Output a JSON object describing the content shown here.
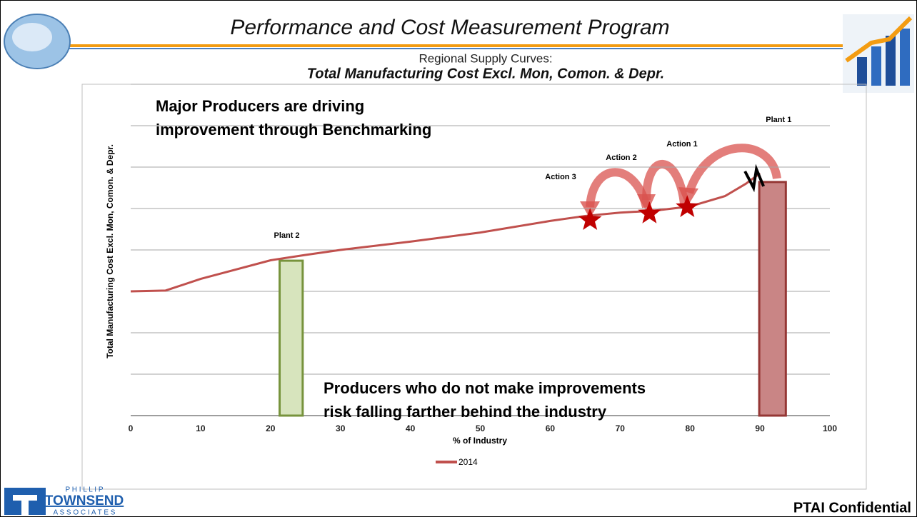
{
  "header": {
    "title": "Performance and Cost Measurement Program",
    "subtitle": "Regional Supply Curves:",
    "subtitle_bold": "Total Manufacturing Cost Excl. Mon, Comon. & Depr."
  },
  "chart_data": {
    "type": "line",
    "x_label": "% of Industry",
    "y_label": "Total Manufacturing  Cost Excl. Mon, Comon. & Depr.",
    "xlim": [
      0,
      100
    ],
    "xticks": [
      0,
      10,
      20,
      30,
      40,
      50,
      60,
      70,
      80,
      90,
      100
    ],
    "ylim": [
      0,
      8
    ],
    "yticks": [
      0,
      1,
      2,
      3,
      4,
      5,
      6,
      7,
      8
    ],
    "grid": true,
    "series": [
      {
        "name": "2014",
        "color": "#c0504d",
        "x": [
          0,
          5,
          10,
          20,
          25,
          30,
          40,
          50,
          60,
          65,
          70,
          75,
          80,
          85,
          88,
          90
        ],
        "values": [
          3.0,
          3.02,
          3.3,
          3.75,
          3.88,
          4.0,
          4.2,
          4.42,
          4.7,
          4.82,
          4.9,
          4.95,
          5.05,
          5.3,
          5.6,
          5.85
        ]
      }
    ],
    "bars": [
      {
        "name": "Plant 2",
        "x0": 21.3,
        "x1": 24.6,
        "value": 3.74,
        "color": "#d7e4bd",
        "edge": "#77933c"
      },
      {
        "name": "Plant 1",
        "x0": 89.9,
        "x1": 93.7,
        "value": 5.64,
        "color": "#c98585",
        "edge": "#953735"
      }
    ],
    "stars": [
      {
        "name": "Action 3",
        "x": 65.7,
        "value": 4.72
      },
      {
        "name": "Action 2",
        "x": 74.2,
        "value": 4.88
      },
      {
        "name": "Action 1",
        "x": 79.6,
        "value": 5.03
      }
    ],
    "annotations": [
      [
        "Major Producers are driving",
        "improvement through Benchmarking"
      ],
      [
        "Producers who do not make improvements",
        "risk falling farther behind the industry"
      ]
    ]
  },
  "footer": {
    "logo_top": "P H I L L I P",
    "logo_main": "TOWNSEND",
    "logo_bottom": "A S S O C I A T E S",
    "confidential": "PTAI Confidential"
  }
}
